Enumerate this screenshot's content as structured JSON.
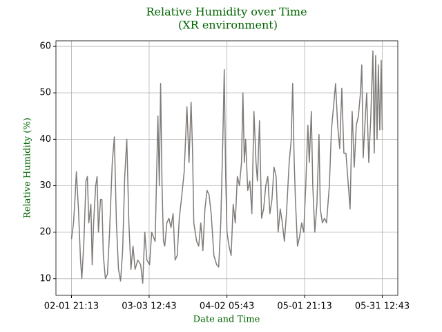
{
  "chart_data": {
    "type": "line",
    "title": "Relative Humidity over Time",
    "subtitle": "(XR environment)",
    "xlabel": "Date and Time",
    "ylabel": "Relative Humidity (%)",
    "title_color": "#006400",
    "grid": true,
    "xlim": [
      "01-26 22:51",
      "06-06 11:05"
    ],
    "xticks": [
      "02-01 21:13",
      "03-03 12:43",
      "04-02 05:43",
      "05-01 21:13",
      "05-31 12:43"
    ],
    "ylim": [
      6.4,
      61.2
    ],
    "yticks": [
      10,
      20,
      30,
      40,
      50,
      60
    ],
    "x": [
      "02-01 21:13",
      "02-02 16:00",
      "02-03 05:00",
      "02-03 18:00",
      "02-04 13:00",
      "02-05 08:00",
      "02-05 20:00",
      "02-06 15:00",
      "02-07 10:00",
      "02-07 23:00",
      "02-08 12:00",
      "02-09 07:00",
      "02-09 19:00",
      "02-10 08:00",
      "02-11 03:00",
      "02-11 16:00",
      "02-12 04:00",
      "02-12 23:00",
      "02-13 12:00",
      "02-14 01:00",
      "02-14 20:00",
      "02-15 15:00",
      "02-16 10:00",
      "02-17 11:00",
      "02-18 06:00",
      "02-19 01:00",
      "02-19 20:00",
      "02-20 15:00",
      "02-21 10:00",
      "02-22 05:00",
      "02-23 00:00",
      "02-23 19:00",
      "02-24 14:00",
      "02-25 09:00",
      "02-26 04:00",
      "02-27 05:00",
      "02-28 07:00",
      "03-01 02:00",
      "03-01 21:00",
      "03-02 16:00",
      "03-03 17:00",
      "03-04 12:00",
      "03-05 20:00",
      "03-06 21:00",
      "03-07 10:00",
      "03-07 22:00",
      "03-08 11:00",
      "03-09 00:00",
      "03-09 12:00",
      "03-10 07:00",
      "03-11 02:00",
      "03-11 21:00",
      "03-12 16:00",
      "03-13 11:00",
      "03-14 06:00",
      "03-15 01:00",
      "03-15 20:00",
      "03-16 22:00",
      "03-17 23:00",
      "03-18 18:00",
      "03-19 13:00",
      "03-20 02:00",
      "03-20 14:00",
      "03-21 16:00",
      "03-22 11:00",
      "03-23 06:00",
      "03-24 01:00",
      "03-24 20:00",
      "03-25 15:00",
      "03-26 10:00",
      "03-27 05:00",
      "03-28 06:00",
      "03-29 07:00",
      "03-30 02:00",
      "03-30 21:00",
      "03-31 16:00",
      "04-01 05:00",
      "04-01 18:00",
      "04-02 06:00",
      "04-03 01:00",
      "04-03 20:00",
      "04-04 15:00",
      "04-05 10:00",
      "04-06 05:00",
      "04-07 00:00",
      "04-07 19:00",
      "04-08 08:00",
      "04-08 21:00",
      "04-09 09:00",
      "04-10 04:00",
      "04-10 23:00",
      "04-11 18:00",
      "04-12 13:00",
      "04-13 08:00",
      "04-13 21:00",
      "04-14 16:00",
      "04-15 11:00",
      "04-16 06:00",
      "04-17 01:00",
      "04-17 20:00",
      "04-18 15:00",
      "04-19 10:00",
      "04-20 05:00",
      "04-21 00:00",
      "04-21 19:00",
      "04-22 14:00",
      "04-23 09:00",
      "04-24 04:00",
      "04-24 23:00",
      "04-26 00:00",
      "04-26 19:00",
      "04-27 08:00",
      "04-27 21:00",
      "04-28 09:00",
      "04-29 04:00",
      "04-29 23:00",
      "04-30 18:00",
      "05-01 13:00",
      "05-02 08:00",
      "05-03 03:00",
      "05-03 16:00",
      "05-04 11:00",
      "05-05 00:00",
      "05-05 19:00",
      "05-06 14:00",
      "05-07 09:00",
      "05-07 21:00",
      "05-08 16:00",
      "05-09 11:00",
      "05-10 06:00",
      "05-11 08:00",
      "05-12 03:00",
      "05-12 22:00",
      "05-13 17:00",
      "05-14 12:00",
      "05-15 07:00",
      "05-16 02:00",
      "05-16 21:00",
      "05-17 16:00",
      "05-18 11:00",
      "05-19 06:00",
      "05-20 01:00",
      "05-20 20:00",
      "05-21 15:00",
      "05-22 10:00",
      "05-23 05:00",
      "05-23 17:00",
      "05-24 06:00",
      "05-24 19:00",
      "05-25 14:00",
      "05-26 09:00",
      "05-27 04:00",
      "05-27 23:00",
      "05-28 11:00",
      "05-29 00:00",
      "05-29 13:00",
      "05-30 01:00",
      "05-30 14:00",
      "05-31 03:00",
      "05-31 12:43"
    ],
    "series": [
      {
        "color": "#7f7b78",
        "values": [
          18.5,
          22,
          27,
          33,
          25,
          14,
          10,
          18,
          31,
          32,
          22,
          26,
          13,
          22,
          30,
          32,
          20,
          27,
          27,
          15,
          10,
          11,
          20,
          35,
          40.5,
          22,
          12,
          9.5,
          16,
          32,
          40,
          22,
          12,
          17,
          12,
          14,
          13,
          9,
          20,
          14,
          13,
          20,
          18,
          45,
          30,
          52,
          30,
          18,
          17,
          22,
          23,
          21,
          24,
          14,
          15,
          23,
          27,
          33,
          47,
          35,
          48,
          38,
          22,
          18,
          17,
          22,
          16,
          25,
          29,
          28,
          24,
          15,
          13,
          12.5,
          22,
          40,
          55,
          32,
          20,
          17,
          15,
          26,
          22,
          32,
          30,
          35,
          50,
          35,
          40,
          29,
          31,
          24,
          46,
          35,
          31,
          44,
          23,
          25,
          30,
          32,
          24,
          27,
          34,
          32,
          20,
          25,
          22,
          18,
          24,
          35,
          40,
          52,
          36,
          27,
          17,
          19,
          22,
          20,
          30,
          43,
          35,
          46,
          30,
          20,
          26,
          41,
          25,
          22,
          23,
          22,
          30,
          42,
          47,
          52,
          43,
          38,
          51,
          37,
          37,
          31,
          25,
          46,
          34,
          43,
          45,
          50,
          56,
          36,
          42,
          50,
          35,
          45,
          59,
          37,
          58,
          40,
          56,
          42,
          57,
          42
        ]
      }
    ]
  }
}
